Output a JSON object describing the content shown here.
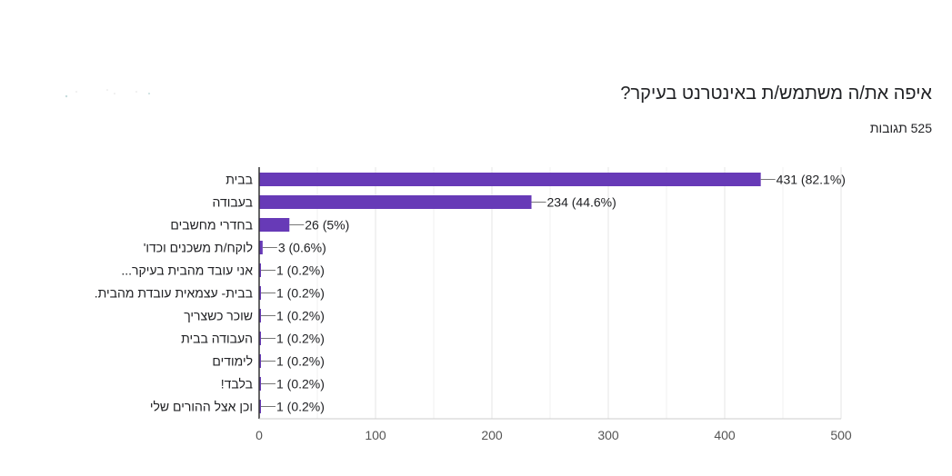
{
  "header": {
    "title": "איפה את/ה משתמש/ת באינטרנט בעיקר?",
    "responses": "525 תגובות"
  },
  "colors": {
    "bar": "#673ab7",
    "grid": "#e6e6e6",
    "axis": "#333333",
    "text": "#202124",
    "tick": "#555555"
  },
  "chart_data": {
    "type": "bar",
    "orientation": "horizontal",
    "categories": [
      "בבית",
      "בעבודה",
      "בחדרי מחשבים",
      "'לוקח/ת משכנים וכדו",
      "...אני עובד מהבית בעיקר",
      ".בבית- עצמאית עובדת מהבית",
      "שוכר כשצריך",
      "העבודה בבית",
      "לימודים",
      "!בלבד",
      "וכן אצל ההורים שלי"
    ],
    "values": [
      431,
      234,
      26,
      3,
      1,
      1,
      1,
      1,
      1,
      1,
      1
    ],
    "value_labels": [
      "431 (82.1%)",
      "234 (44.6%)",
      "26 (5%)",
      "3 (0.6%)",
      "1 (0.2%)",
      "1 (0.2%)",
      "1 (0.2%)",
      "1 (0.2%)",
      "1 (0.2%)",
      "1 (0.2%)",
      "1 (0.2%)"
    ],
    "xlim": [
      0,
      500
    ],
    "xticks": [
      0,
      100,
      200,
      300,
      400,
      500
    ],
    "grid": true,
    "legend": "none"
  }
}
